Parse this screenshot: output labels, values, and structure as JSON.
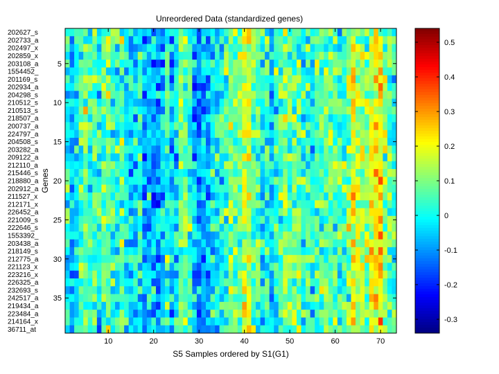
{
  "chart_data": {
    "type": "heatmap",
    "title": "Unreordered Data (standardized genes)",
    "xlabel": "S5 Samples ordered by S1(G1)",
    "ylabel": "Genes",
    "n_cols": 73,
    "n_rows": 39,
    "x_range": [
      0.5,
      73.5
    ],
    "y_range": [
      0.5,
      39.5
    ],
    "x_ticks": [
      10,
      20,
      30,
      40,
      50,
      60,
      70
    ],
    "y_ticks": [
      5,
      10,
      15,
      20,
      25,
      30,
      35
    ],
    "row_labels": [
      "202627_s",
      "202733_a",
      "202497_x",
      "202859_x",
      "203108_a",
      "1554452_",
      "201169_s",
      "202934_a",
      "204298_s",
      "210512_s",
      "210513_s",
      "218507_a",
      "200737_a",
      "224797_a",
      "204508_s",
      "203282_a",
      "209122_a",
      "212110_a",
      "215446_s",
      "218880_a",
      "202912_a",
      "211527_x",
      "212171_x",
      "226452_a",
      "221009_s",
      "222646_s",
      "1553392_",
      "203438_a",
      "218149_s",
      "212775_a",
      "221123_x",
      "223216_x",
      "226325_a",
      "232693_s",
      "242517_a",
      "219434_a",
      "223484_a",
      "214164_x",
      "36711_at"
    ],
    "column_profile": [
      0.02,
      -0.08,
      0.0,
      0.06,
      0.1,
      0.02,
      0.04,
      0.0,
      0.06,
      0.1,
      0.04,
      0.02,
      0.08,
      0.0,
      -0.02,
      -0.04,
      0.0,
      -0.1,
      -0.06,
      -0.08,
      -0.1,
      -0.04,
      0.04,
      -0.06,
      -0.02,
      0.06,
      0.08,
      0.04,
      -0.06,
      -0.1,
      -0.08,
      -0.06,
      0.0,
      -0.02,
      0.02,
      0.04,
      0.1,
      0.06,
      0.08,
      0.18,
      0.16,
      0.08,
      0.06,
      0.0,
      0.04,
      -0.02,
      0.02,
      0.06,
      0.1,
      0.06,
      0.08,
      0.06,
      0.02,
      0.04,
      0.0,
      0.04,
      0.06,
      0.1,
      0.08,
      0.06,
      0.02,
      0.04,
      0.1,
      0.2,
      0.16,
      0.14,
      0.1,
      0.18,
      0.22,
      0.24,
      0.12,
      0.06,
      0.04
    ],
    "value_noise_amplitude": 0.14,
    "random_seed": 7,
    "colorbar": {
      "vmin": -0.34,
      "vmax": 0.54,
      "ticks": [
        -0.3,
        -0.2,
        -0.1,
        0,
        0.1,
        0.2,
        0.3,
        0.4,
        0.5
      ],
      "tick_labels": [
        "-0.3",
        "-0.2",
        "-0.1",
        "0",
        "0.1",
        "0.2",
        "0.3",
        "0.4",
        "0.5"
      ]
    },
    "colormap": "jet"
  }
}
